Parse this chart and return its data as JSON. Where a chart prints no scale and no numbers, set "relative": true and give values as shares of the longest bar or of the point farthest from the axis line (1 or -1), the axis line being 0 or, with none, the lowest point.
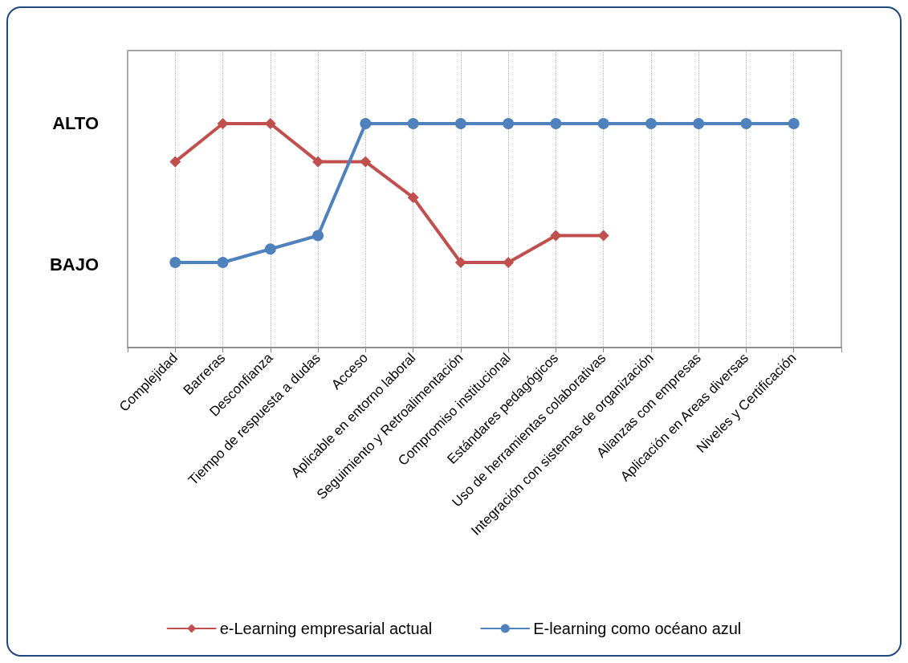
{
  "chart_data": {
    "type": "line",
    "relative": true,
    "categories": [
      "Complejidad",
      "Barreras",
      "Desconfianza",
      "Tiempo de respuesta a dudas",
      "Acceso",
      "Aplicable en entorno laboral",
      "Seguimiento y Retroalimentación",
      "Compromiso institucional",
      "Estándares pedagógicos",
      "Uso de herramientas colaborativas",
      "Integración con sistemas de organización",
      "Alianzas con empresas",
      "Aplicación en Areas diversas",
      "Niveles y Certificación"
    ],
    "series": [
      {
        "name": "e-Learning empresarial actual",
        "color": "#c0504d",
        "marker": "diamond",
        "values": [
          0.83,
          1,
          1,
          0.83,
          0.83,
          0.67,
          0.38,
          0.38,
          0.5,
          0.5,
          null,
          null,
          null,
          null
        ]
      },
      {
        "name": "E-learning como océano azul",
        "color": "#4f81bd",
        "marker": "circle",
        "values": [
          0.38,
          0.38,
          0.44,
          0.5,
          1,
          1,
          1,
          1,
          1,
          1,
          1,
          1,
          1,
          1
        ]
      }
    ],
    "annotations": [
      "ALTO",
      "BAJO"
    ],
    "grid": "x",
    "legend": "bottom",
    "line_style": "solid"
  }
}
